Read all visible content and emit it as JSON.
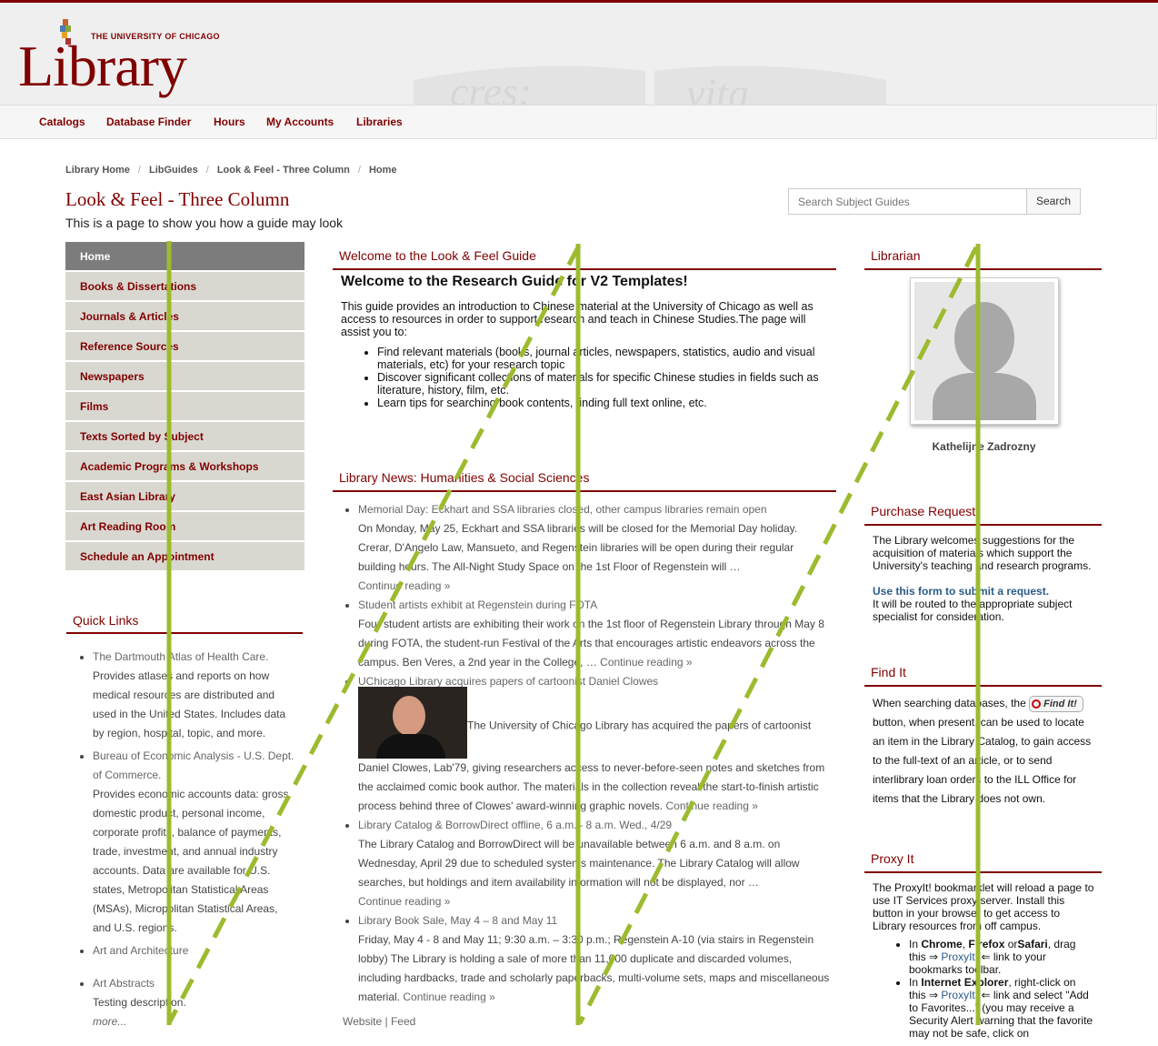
{
  "header": {
    "logo_top": "THE UNIVERSITY OF CHICAGO",
    "logo_main": "Library",
    "watermark_text": "Crescat scientia; vita excolatur"
  },
  "nav": [
    "Catalogs",
    "Database Finder",
    "Hours",
    "My Accounts",
    "Libraries"
  ],
  "breadcrumb": [
    "Library Home",
    "LibGuides",
    "Look & Feel - Three Column",
    "Home"
  ],
  "page": {
    "title": "Look & Feel - Three Column",
    "subtitle": "This is a page to show you how a guide may look"
  },
  "search": {
    "placeholder": "Search Subject Guides",
    "button": "Search"
  },
  "guide_nav": [
    "Home",
    "Books & Dissertations",
    "Journals & Articles",
    "Reference Sources",
    "Newspapers",
    "Films",
    "Texts Sorted by Subject",
    "Academic Programs & Workshops",
    "East Asian Library",
    "Art Reading Room",
    "Schedule an Appointment"
  ],
  "quick_links": {
    "heading": "Quick Links",
    "items": [
      {
        "link": "The Dartmouth Atlas of Health Care.",
        "desc": "Provides atlases and reports on how medical resources are distributed and used in the United States. Includes data by region, hospital, topic, and more."
      },
      {
        "link": "Bureau of Economic Analysis - U.S. Dept. of Commerce.",
        "desc": "Provides economic accounts data: gross domestic product, personal income, corporate profits, balance of payments, trade, investment, and annual industry accounts. Data are available for U.S. states, Metropolitan Statistical Areas (MSAs), Micropolitan Statistical Areas, and U.S. regions."
      },
      {
        "link": "Art and Architecture",
        "desc": ""
      },
      {
        "link": "Art Abstracts",
        "desc": "Testing description."
      }
    ],
    "more": "more..."
  },
  "welcome": {
    "heading": "Welcome to the Look & Feel Guide",
    "title": "Welcome to the Research Guide for V2 Templates!",
    "intro": "This guide provides an introduction to Chinese material at the University of Chicago as well as access to resources in order to support research and teach in Chinese Studies.The page will assist you to:",
    "bullets": [
      "Find relevant materials (books, journal articles, newspapers, statistics, audio and visual materials, etc) for your research topic",
      "Discover significant collections of materials for specific Chinese studies in fields such as literature, history, film, etc.",
      "Learn tips for searching book contents, finding full text online, etc."
    ]
  },
  "news": {
    "heading": "Library News: Humanities & Social Sciences",
    "items": [
      {
        "title": "Memorial Day: Eckhart and SSA libraries closed, other campus libraries remain open",
        "body": "On Monday, May 25, Eckhart and SSA libraries will be closed for the Memorial Day holiday. Crerar, D'Angelo Law, Mansueto, and Regenstein libraries will be open during their regular building hours. The All-Night Study Space on the 1st Floor of Regenstein will …",
        "more": "Continue reading »",
        "more_newline": true
      },
      {
        "title": "Student artists exhibit at Regenstein during FOTA",
        "body": "Four student artists are exhibiting their work on the 1st floor of Regenstein Library through May 8 during FOTA, the student-run Festival of the Arts that encourages artistic endeavors across the campus.  Ben Veres, a 2nd year in the College, …",
        "more": "Continue reading »",
        "more_newline": false
      },
      {
        "title": "UChicago Library acquires papers of cartoonist Daniel Clowes",
        "image": true,
        "lead": "The University of Chicago Library has acquired the papers of cartoonist",
        "body": "Daniel Clowes, Lab'79, giving researchers access to never-before-seen notes and sketches from the acclaimed comic book author. The materials in the collection reveal the start-to-finish artistic process behind three of Clowes' award-winning graphic novels.",
        "more": "Continue reading »",
        "more_newline": false
      },
      {
        "title": "Library Catalog & BorrowDirect offline, 6 a.m.– 8 a.m. Wed., 4/29",
        "body": "The Library Catalog and BorrowDirect will be unavailable between 6 a.m. and 8 a.m. on Wednesday, April 29 due to scheduled systems maintenance. The Library Catalog will allow searches, but holdings and item availability information will not be displayed, nor …",
        "more": "Continue reading »",
        "more_newline": true
      },
      {
        "title": "Library Book Sale, May 4 – 8 and May 11",
        "body": "Friday, May 4 - 8 and May 11; 9:30 a.m. – 3:30 p.m.; Regenstein A-10 (via stairs in Regenstein lobby) The Library is holding a sale of more than 11,000 duplicate and discarded volumes, including hardbacks, trade and scholarly paperbacks, multi-volume sets, maps and miscellaneous material.",
        "more": "Continue reading »",
        "more_newline": false
      }
    ],
    "footer_website": "Website",
    "footer_sep": "|",
    "footer_feed": "Feed"
  },
  "librarian": {
    "heading": "Librarian",
    "name": "Kathelijne Zadrozny"
  },
  "purchase": {
    "heading": "Purchase Request",
    "text": "The Library welcomes suggestions for the acquisition of materials which support the University's teaching and research programs.",
    "link": "Use this form to submit a request.",
    "after": "It will be routed to the appropriate subject specialist for consideration."
  },
  "findit": {
    "heading": "Find It",
    "before": "When searching databases, the",
    "button": "Find It!",
    "after": "button, when present, can be used to locate an item in the Library Catalog, to gain access to the full-text of an article, or to send interlibrary loan orders to the ILL Office for items that the Library does not own."
  },
  "proxy": {
    "heading": "Proxy It",
    "text": "The ProxyIt! bookmarklet will reload a page to use IT Services proxy server. Install this button in your browser to get access to Library resources from off campus.",
    "b1_pre": "In",
    "b1_chrome": "Chrome",
    "b1_firefox": "Firefox",
    "b1_or": "or",
    "b1_safari": "Safari",
    "b1_drag": ", drag this ⇒",
    "b1_link": "ProxyIt!",
    "b1_post": "⇐ link to your bookmarks toolbar.",
    "b2_pre": "In",
    "b2_ie": "Internet Explorer",
    "b2_mid": ", right-click on this ⇒",
    "b2_link": "ProxyIt!",
    "b2_post": "⇐ link and select \"Add to Favorites...\" (you may receive a Security Alert warning that the favorite may not be safe, click on"
  },
  "colors": {
    "brand": "#800000",
    "overlay": "#9cbb2e",
    "nav_bg": "#d9d8d0",
    "nav_active": "#7c7c7c"
  }
}
